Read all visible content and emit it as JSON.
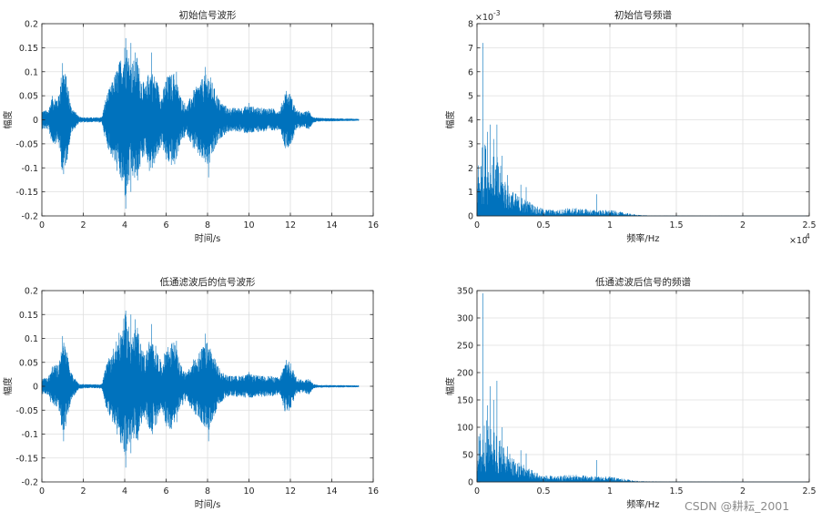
{
  "chart_data": [
    {
      "type": "line",
      "title": "初始信号波形",
      "xlabel": "时间/s",
      "ylabel": "幅度",
      "xlim": [
        0,
        16
      ],
      "ylim": [
        -0.2,
        0.2
      ],
      "xticks": [
        0,
        2,
        4,
        6,
        8,
        10,
        12,
        14,
        16
      ],
      "yticks": [
        -0.2,
        -0.15,
        -0.1,
        -0.05,
        0,
        0.05,
        0.1,
        0.15,
        0.2
      ],
      "exponent_label": "",
      "grid": true,
      "color": "#0072bd",
      "signal_end_x": 15.3,
      "envelope": [
        [
          0,
          0.02
        ],
        [
          0.3,
          0.02
        ],
        [
          0.5,
          0.05
        ],
        [
          0.8,
          0.05
        ],
        [
          1.0,
          0.115
        ],
        [
          1.2,
          0.09
        ],
        [
          1.4,
          0.03
        ],
        [
          1.8,
          0.006
        ],
        [
          2.5,
          0.005
        ],
        [
          2.9,
          0.006
        ],
        [
          3.1,
          0.05
        ],
        [
          3.4,
          0.08
        ],
        [
          3.8,
          0.13
        ],
        [
          4.05,
          0.17
        ],
        [
          4.3,
          0.12
        ],
        [
          4.6,
          0.135
        ],
        [
          4.8,
          0.09
        ],
        [
          5.0,
          0.07
        ],
        [
          5.2,
          0.11
        ],
        [
          5.5,
          0.09
        ],
        [
          5.8,
          0.05
        ],
        [
          6.0,
          0.09
        ],
        [
          6.4,
          0.1
        ],
        [
          6.7,
          0.05
        ],
        [
          7.0,
          0.03
        ],
        [
          7.3,
          0.06
        ],
        [
          7.8,
          0.09
        ],
        [
          8.05,
          0.1
        ],
        [
          8.3,
          0.07
        ],
        [
          8.6,
          0.04
        ],
        [
          9.0,
          0.025
        ],
        [
          9.5,
          0.025
        ],
        [
          10.0,
          0.03
        ],
        [
          10.5,
          0.025
        ],
        [
          11.0,
          0.025
        ],
        [
          11.5,
          0.02
        ],
        [
          11.75,
          0.06
        ],
        [
          12.0,
          0.055
        ],
        [
          12.3,
          0.02
        ],
        [
          12.6,
          0.015
        ],
        [
          12.9,
          0.02
        ],
        [
          13.1,
          0.006
        ],
        [
          13.3,
          0.004
        ],
        [
          15.3,
          0.002
        ]
      ],
      "peaks": [
        [
          1.0,
          0.118
        ],
        [
          1.05,
          -0.113
        ],
        [
          3.8,
          0.11
        ],
        [
          4.05,
          0.17
        ],
        [
          4.05,
          -0.185
        ],
        [
          4.3,
          0.16
        ],
        [
          4.3,
          -0.15
        ],
        [
          4.5,
          0.14
        ],
        [
          4.6,
          -0.105
        ],
        [
          5.3,
          0.14
        ],
        [
          5.35,
          -0.1
        ],
        [
          6.5,
          0.1
        ],
        [
          6.4,
          -0.08
        ],
        [
          7.9,
          0.11
        ],
        [
          8.05,
          -0.12
        ],
        [
          10.0,
          0.035
        ],
        [
          11.8,
          0.06
        ],
        [
          12.0,
          -0.05
        ]
      ]
    },
    {
      "type": "line",
      "title": "初始信号频谱",
      "xlabel": "频率/Hz",
      "ylabel": "幅度",
      "xlim": [
        0,
        25000
      ],
      "ylim": [
        0,
        0.008
      ],
      "xticks": [
        0,
        5000,
        10000,
        15000,
        20000,
        25000
      ],
      "xticklabels": [
        "0",
        "0.5",
        "1",
        "1.5",
        "2",
        "2.5"
      ],
      "yticks": [
        0,
        0.001,
        0.002,
        0.003,
        0.004,
        0.005,
        0.006,
        0.007,
        0.008
      ],
      "yticklabels": [
        "0",
        "1",
        "2",
        "3",
        "4",
        "5",
        "6",
        "7",
        "8"
      ],
      "exponent_label": "×10",
      "exponent_power": "-3",
      "x_exponent_label": "×10",
      "x_exponent_power": "4",
      "grid": true,
      "color": "#0072bd",
      "envelope": [
        [
          0,
          0.0022
        ],
        [
          300,
          0.0028
        ],
        [
          600,
          0.0032
        ],
        [
          1000,
          0.0026
        ],
        [
          1500,
          0.0025
        ],
        [
          2000,
          0.0018
        ],
        [
          2500,
          0.0012
        ],
        [
          3000,
          0.0009
        ],
        [
          3500,
          0.0008
        ],
        [
          4000,
          0.0006
        ],
        [
          4500,
          0.0004
        ],
        [
          5000,
          0.0003
        ],
        [
          6000,
          0.00025
        ],
        [
          7000,
          0.00035
        ],
        [
          8000,
          0.0003
        ],
        [
          9000,
          0.00025
        ],
        [
          10000,
          0.00025
        ],
        [
          11000,
          0.00015
        ],
        [
          12000,
          5e-05
        ],
        [
          13000,
          2e-05
        ],
        [
          25000,
          5e-06
        ]
      ],
      "peaks": [
        [
          450,
          0.0072
        ],
        [
          800,
          0.0035
        ],
        [
          1000,
          0.0038
        ],
        [
          1250,
          0.0032
        ],
        [
          1500,
          0.0038
        ],
        [
          1900,
          0.0025
        ],
        [
          2300,
          0.0017
        ],
        [
          3300,
          0.0013
        ],
        [
          3700,
          0.0012
        ],
        [
          9000,
          0.0009
        ]
      ]
    },
    {
      "type": "line",
      "title": "低通滤波后的信号波形",
      "xlabel": "时间/s",
      "ylabel": "幅度",
      "xlim": [
        0,
        16
      ],
      "ylim": [
        -0.2,
        0.2
      ],
      "xticks": [
        0,
        2,
        4,
        6,
        8,
        10,
        12,
        14,
        16
      ],
      "yticks": [
        -0.2,
        -0.15,
        -0.1,
        -0.05,
        0,
        0.05,
        0.1,
        0.15,
        0.2
      ],
      "exponent_label": "",
      "grid": true,
      "color": "#0072bd",
      "signal_end_x": 15.3,
      "envelope": [
        [
          0,
          0.018
        ],
        [
          0.3,
          0.018
        ],
        [
          0.5,
          0.045
        ],
        [
          0.8,
          0.045
        ],
        [
          1.0,
          0.1
        ],
        [
          1.2,
          0.08
        ],
        [
          1.4,
          0.03
        ],
        [
          1.8,
          0.005
        ],
        [
          2.5,
          0.004
        ],
        [
          2.9,
          0.005
        ],
        [
          3.1,
          0.045
        ],
        [
          3.4,
          0.075
        ],
        [
          3.8,
          0.12
        ],
        [
          4.05,
          0.155
        ],
        [
          4.3,
          0.11
        ],
        [
          4.6,
          0.125
        ],
        [
          4.8,
          0.085
        ],
        [
          5.0,
          0.065
        ],
        [
          5.2,
          0.1
        ],
        [
          5.5,
          0.085
        ],
        [
          5.8,
          0.045
        ],
        [
          6.0,
          0.085
        ],
        [
          6.4,
          0.095
        ],
        [
          6.7,
          0.045
        ],
        [
          7.0,
          0.028
        ],
        [
          7.3,
          0.055
        ],
        [
          7.8,
          0.085
        ],
        [
          8.05,
          0.095
        ],
        [
          8.3,
          0.065
        ],
        [
          8.6,
          0.035
        ],
        [
          9.0,
          0.022
        ],
        [
          9.5,
          0.022
        ],
        [
          10.0,
          0.026
        ],
        [
          10.5,
          0.022
        ],
        [
          11.0,
          0.022
        ],
        [
          11.5,
          0.018
        ],
        [
          11.75,
          0.055
        ],
        [
          12.0,
          0.05
        ],
        [
          12.3,
          0.018
        ],
        [
          12.6,
          0.013
        ],
        [
          12.9,
          0.018
        ],
        [
          13.1,
          0.005
        ],
        [
          13.3,
          0.003
        ],
        [
          15.3,
          0.002
        ]
      ],
      "peaks": [
        [
          1.0,
          0.105
        ],
        [
          1.05,
          -0.115
        ],
        [
          3.8,
          0.1
        ],
        [
          4.05,
          0.158
        ],
        [
          4.05,
          -0.17
        ],
        [
          4.3,
          0.15
        ],
        [
          4.3,
          -0.14
        ],
        [
          4.5,
          0.14
        ],
        [
          4.6,
          -0.1
        ],
        [
          5.3,
          0.13
        ],
        [
          5.35,
          -0.1
        ],
        [
          6.5,
          0.095
        ],
        [
          6.4,
          -0.075
        ],
        [
          7.9,
          0.11
        ],
        [
          8.05,
          -0.115
        ],
        [
          10.0,
          0.03
        ],
        [
          11.8,
          0.055
        ],
        [
          12.0,
          -0.045
        ]
      ]
    },
    {
      "type": "line",
      "title": "低通滤波后信号的频谱",
      "xlabel": "频率/Hz",
      "ylabel": "幅度",
      "xlim": [
        0,
        25000
      ],
      "ylim": [
        0,
        350
      ],
      "xticks": [
        0,
        5000,
        10000,
        15000,
        20000,
        25000
      ],
      "xticklabels": [
        "0",
        "0.5",
        "1",
        "1.5",
        "2",
        "2.5"
      ],
      "yticks": [
        0,
        50,
        100,
        150,
        200,
        250,
        300,
        350
      ],
      "yticklabels": [
        "0",
        "50",
        "100",
        "150",
        "200",
        "250",
        "300",
        "350"
      ],
      "exponent_label": "",
      "grid": true,
      "color": "#0072bd",
      "envelope": [
        [
          0,
          80
        ],
        [
          300,
          100
        ],
        [
          600,
          120
        ],
        [
          1000,
          100
        ],
        [
          1500,
          95
        ],
        [
          2000,
          70
        ],
        [
          2500,
          50
        ],
        [
          3000,
          38
        ],
        [
          3500,
          34
        ],
        [
          4000,
          25
        ],
        [
          4500,
          18
        ],
        [
          5000,
          13
        ],
        [
          6000,
          10
        ],
        [
          7000,
          14
        ],
        [
          8000,
          12
        ],
        [
          9000,
          10
        ],
        [
          10000,
          10
        ],
        [
          11000,
          6
        ],
        [
          12000,
          2
        ],
        [
          13000,
          1
        ],
        [
          25000,
          0.3
        ]
      ],
      "peaks": [
        [
          450,
          345
        ],
        [
          800,
          140
        ],
        [
          1000,
          175
        ],
        [
          1250,
          150
        ],
        [
          1500,
          185
        ],
        [
          1900,
          100
        ],
        [
          2300,
          65
        ],
        [
          3300,
          58
        ],
        [
          3700,
          52
        ],
        [
          9000,
          40
        ]
      ]
    }
  ],
  "watermark": "CSDN @耕耘_2001",
  "colors": {
    "line": "#0072bd",
    "axis": "#262626",
    "grid": "#dfdfdf",
    "watermark": "#8c8c8c"
  }
}
